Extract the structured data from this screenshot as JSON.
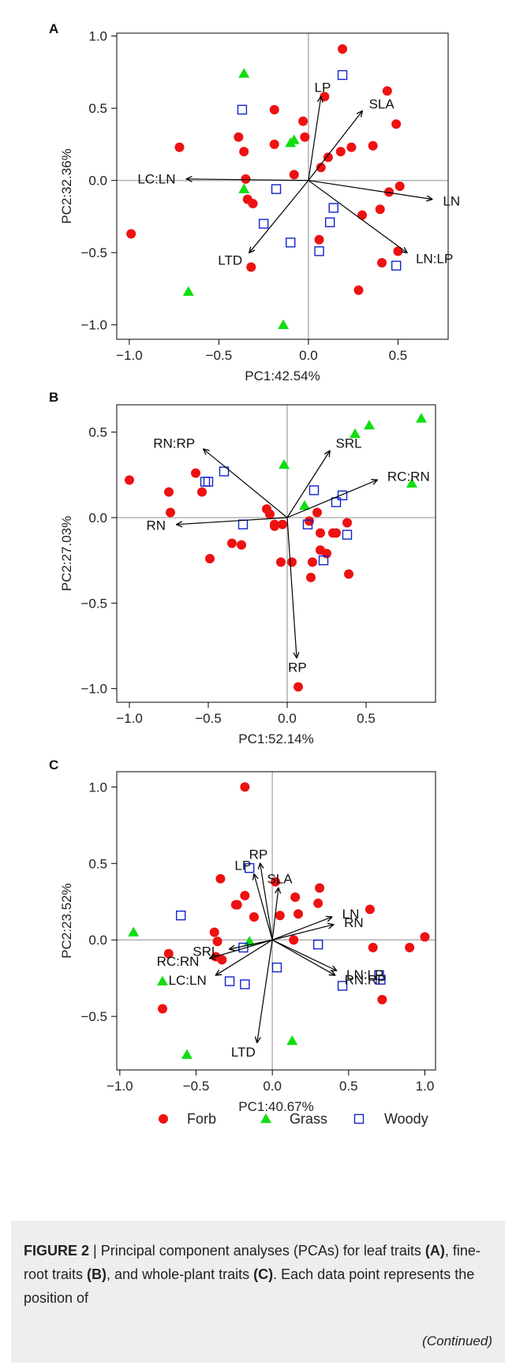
{
  "chart_data": [
    {
      "panel_label": "A",
      "type": "scatter",
      "xlabel": "PC1:42.54%",
      "ylabel": "PC2:32.36%",
      "xlim": [
        -1.07,
        0.78
      ],
      "ylim": [
        -1.1,
        1.02
      ],
      "xticks": [
        -1.0,
        -0.5,
        0.0,
        0.5
      ],
      "xtick_labels": [
        "−1.0",
        "−0.5",
        "0.0",
        "0.5"
      ],
      "yticks": [
        -1.0,
        -0.5,
        0.0,
        0.5,
        1.0
      ],
      "ytick_labels": [
        "−1.0",
        "−0.5",
        "0.0",
        "0.5",
        "1.0"
      ],
      "series": [
        {
          "name": "Forb",
          "marker": "circle",
          "color": "#ee1111",
          "points": [
            [
              0.19,
              0.91
            ],
            [
              0.44,
              0.62
            ],
            [
              0.09,
              0.58
            ],
            [
              -0.19,
              0.49
            ],
            [
              0.49,
              0.39
            ],
            [
              -0.03,
              0.41
            ],
            [
              -0.39,
              0.3
            ],
            [
              -0.02,
              0.3
            ],
            [
              -0.19,
              0.25
            ],
            [
              0.36,
              0.24
            ],
            [
              0.24,
              0.23
            ],
            [
              0.18,
              0.2
            ],
            [
              -0.36,
              0.2
            ],
            [
              -0.72,
              0.23
            ],
            [
              0.11,
              0.16
            ],
            [
              0.07,
              0.09
            ],
            [
              -0.08,
              0.04
            ],
            [
              -0.35,
              0.01
            ],
            [
              0.51,
              -0.04
            ],
            [
              0.45,
              -0.08
            ],
            [
              -0.34,
              -0.13
            ],
            [
              -0.31,
              -0.16
            ],
            [
              0.4,
              -0.2
            ],
            [
              0.3,
              -0.24
            ],
            [
              -0.99,
              -0.37
            ],
            [
              0.06,
              -0.41
            ],
            [
              0.5,
              -0.49
            ],
            [
              0.41,
              -0.57
            ],
            [
              -0.32,
              -0.6
            ],
            [
              0.28,
              -0.76
            ]
          ]
        },
        {
          "name": "Grass",
          "marker": "triangle",
          "color": "#11dd11",
          "points": [
            [
              -0.36,
              0.74
            ],
            [
              -0.1,
              0.26
            ],
            [
              -0.08,
              0.28
            ],
            [
              -0.36,
              -0.06
            ],
            [
              -0.67,
              -0.77
            ],
            [
              -0.14,
              -1.0
            ]
          ]
        },
        {
          "name": "Woody",
          "marker": "square",
          "color": "#1122cc",
          "points": [
            [
              0.19,
              0.73
            ],
            [
              -0.37,
              0.49
            ],
            [
              -0.18,
              -0.06
            ],
            [
              0.14,
              -0.19
            ],
            [
              -0.25,
              -0.3
            ],
            [
              0.12,
              -0.29
            ],
            [
              -0.1,
              -0.43
            ],
            [
              0.06,
              -0.49
            ],
            [
              0.49,
              -0.59
            ]
          ]
        }
      ],
      "vectors": [
        {
          "label": "LP",
          "x": 0.07,
          "y": 0.58
        },
        {
          "label": "SLA",
          "x": 0.3,
          "y": 0.48
        },
        {
          "label": "LC:LN",
          "x": -0.68,
          "y": 0.01
        },
        {
          "label": "LN",
          "x": 0.69,
          "y": -0.13
        },
        {
          "label": "LN:LP",
          "x": 0.55,
          "y": -0.5
        },
        {
          "label": "LTD",
          "x": -0.33,
          "y": -0.5
        }
      ]
    },
    {
      "panel_label": "B",
      "type": "scatter",
      "xlabel": "PC1:52.14%",
      "ylabel": "PC2:27.03%",
      "xlim": [
        -1.08,
        0.94
      ],
      "ylim": [
        -1.08,
        0.66
      ],
      "xticks": [
        -1.0,
        -0.5,
        0.0,
        0.5
      ],
      "xtick_labels": [
        "−1.0",
        "−0.5",
        "0.0",
        "0.5"
      ],
      "yticks": [
        -1.0,
        -0.5,
        0.0,
        0.5
      ],
      "ytick_labels": [
        "−1.0",
        "−0.5",
        "0.0",
        "0.5"
      ],
      "series": [
        {
          "name": "Forb",
          "marker": "circle",
          "color": "#ee1111",
          "points": [
            [
              -1.0,
              0.22
            ],
            [
              -0.58,
              0.26
            ],
            [
              -0.75,
              0.15
            ],
            [
              -0.54,
              0.15
            ],
            [
              -0.74,
              0.03
            ],
            [
              -0.13,
              0.05
            ],
            [
              -0.11,
              0.02
            ],
            [
              -0.08,
              -0.05
            ],
            [
              -0.03,
              -0.04
            ],
            [
              -0.08,
              -0.04
            ],
            [
              0.19,
              0.03
            ],
            [
              0.14,
              -0.02
            ],
            [
              -0.35,
              -0.15
            ],
            [
              -0.29,
              -0.16
            ],
            [
              -0.49,
              -0.24
            ],
            [
              -0.04,
              -0.26
            ],
            [
              0.03,
              -0.26
            ],
            [
              0.16,
              -0.26
            ],
            [
              0.15,
              -0.35
            ],
            [
              0.21,
              -0.09
            ],
            [
              0.29,
              -0.09
            ],
            [
              0.31,
              -0.09
            ],
            [
              0.21,
              -0.19
            ],
            [
              0.25,
              -0.21
            ],
            [
              0.38,
              -0.03
            ],
            [
              0.39,
              -0.33
            ],
            [
              0.07,
              -0.99
            ]
          ]
        },
        {
          "name": "Grass",
          "marker": "triangle",
          "color": "#11dd11",
          "points": [
            [
              0.85,
              0.58
            ],
            [
              0.52,
              0.54
            ],
            [
              0.43,
              0.49
            ],
            [
              -0.02,
              0.31
            ],
            [
              0.79,
              0.2
            ],
            [
              0.11,
              0.07
            ]
          ]
        },
        {
          "name": "Woody",
          "marker": "square",
          "color": "#1122cc",
          "points": [
            [
              -0.4,
              0.27
            ],
            [
              -0.52,
              0.21
            ],
            [
              -0.5,
              0.21
            ],
            [
              0.17,
              0.16
            ],
            [
              0.35,
              0.13
            ],
            [
              0.31,
              0.09
            ],
            [
              -0.28,
              -0.04
            ],
            [
              0.13,
              -0.04
            ],
            [
              0.38,
              -0.1
            ],
            [
              0.23,
              -0.25
            ]
          ]
        }
      ],
      "vectors": [
        {
          "label": "RN:RP",
          "x": -0.53,
          "y": 0.4
        },
        {
          "label": "SRL",
          "x": 0.27,
          "y": 0.39
        },
        {
          "label": "RC:RN",
          "x": 0.57,
          "y": 0.22
        },
        {
          "label": "RN",
          "x": -0.7,
          "y": -0.04
        },
        {
          "label": "RP",
          "x": 0.06,
          "y": -0.82
        }
      ]
    },
    {
      "panel_label": "C",
      "type": "scatter",
      "xlabel": "PC1:40.67%",
      "ylabel": "PC2:23.52%",
      "xlim": [
        -1.02,
        1.07
      ],
      "ylim": [
        -0.85,
        1.1
      ],
      "xticks": [
        -1.0,
        -0.5,
        0.0,
        0.5,
        1.0
      ],
      "xtick_labels": [
        "−1.0",
        "−0.5",
        "0.0",
        "0.5",
        "1.0"
      ],
      "yticks": [
        -0.5,
        0.0,
        0.5,
        1.0
      ],
      "ytick_labels": [
        "−0.5",
        "0.0",
        "0.5",
        "1.0"
      ],
      "series": [
        {
          "name": "Forb",
          "marker": "circle",
          "color": "#ee1111",
          "points": [
            [
              -0.18,
              1.0
            ],
            [
              -0.34,
              0.4
            ],
            [
              0.02,
              0.38
            ],
            [
              0.31,
              0.34
            ],
            [
              -0.18,
              0.29
            ],
            [
              -0.24,
              0.23
            ],
            [
              -0.23,
              0.23
            ],
            [
              0.15,
              0.28
            ],
            [
              0.3,
              0.24
            ],
            [
              0.64,
              0.2
            ],
            [
              0.17,
              0.17
            ],
            [
              -0.12,
              0.15
            ],
            [
              0.05,
              0.16
            ],
            [
              -0.38,
              0.05
            ],
            [
              -0.36,
              -0.01
            ],
            [
              0.14,
              0.0
            ],
            [
              -0.68,
              -0.09
            ],
            [
              -0.37,
              -0.11
            ],
            [
              -0.33,
              -0.13
            ],
            [
              0.66,
              -0.05
            ],
            [
              0.9,
              -0.05
            ],
            [
              1.0,
              0.02
            ],
            [
              -0.72,
              -0.45
            ],
            [
              0.72,
              -0.39
            ]
          ]
        },
        {
          "name": "Grass",
          "marker": "triangle",
          "color": "#11dd11",
          "points": [
            [
              -0.91,
              0.05
            ],
            [
              -0.15,
              -0.01
            ],
            [
              -0.72,
              -0.27
            ],
            [
              -0.56,
              -0.75
            ],
            [
              0.13,
              -0.66
            ]
          ]
        },
        {
          "name": "Woody",
          "marker": "square",
          "color": "#1122cc",
          "points": [
            [
              -0.6,
              0.16
            ],
            [
              -0.15,
              0.47
            ],
            [
              -0.19,
              -0.05
            ],
            [
              0.3,
              -0.03
            ],
            [
              0.03,
              -0.18
            ],
            [
              -0.28,
              -0.27
            ],
            [
              -0.18,
              -0.29
            ],
            [
              0.46,
              -0.3
            ],
            [
              0.7,
              -0.23
            ],
            [
              0.71,
              -0.26
            ]
          ]
        }
      ],
      "vectors": [
        {
          "label": "RP",
          "x": -0.08,
          "y": 0.5
        },
        {
          "label": "LP",
          "x": -0.12,
          "y": 0.43
        },
        {
          "label": "SLA",
          "x": 0.04,
          "y": 0.34
        },
        {
          "label": "LN",
          "x": 0.39,
          "y": 0.15
        },
        {
          "label": "RN",
          "x": 0.4,
          "y": 0.1
        },
        {
          "label": "SRL",
          "x": -0.28,
          "y": -0.06
        },
        {
          "label": "RC:RN",
          "x": -0.41,
          "y": -0.12
        },
        {
          "label": "LC:LN",
          "x": -0.37,
          "y": -0.23
        },
        {
          "label": "LN:LP",
          "x": 0.42,
          "y": -0.2
        },
        {
          "label": "RN:RP",
          "x": 0.41,
          "y": -0.23
        },
        {
          "label": "LTD",
          "x": -0.1,
          "y": -0.67
        }
      ]
    }
  ],
  "legend": {
    "items": [
      {
        "label": "Forb",
        "marker": "circle",
        "color": "#ee1111"
      },
      {
        "label": "Grass",
        "marker": "triangle",
        "color": "#11dd11"
      },
      {
        "label": "Woody",
        "marker": "square",
        "color": "#1122cc"
      }
    ]
  },
  "caption": {
    "figure_label": "FIGURE 2",
    "separator": " | ",
    "text_1": "Principal component analyses (PCAs) for leaf traits ",
    "bold_a": "(A)",
    "text_2": ", fine-root traits ",
    "bold_b": "(B)",
    "text_3": ", and whole-plant traits ",
    "bold_c": "(C)",
    "text_4": ". Each data point represents the position of",
    "continued": "(Continued)"
  }
}
